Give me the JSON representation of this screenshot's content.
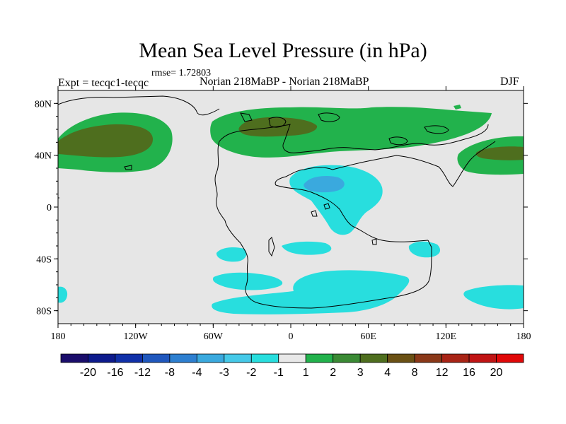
{
  "header": {
    "title": "Mean Sea Level Pressure (in hPa)",
    "rmse": "rmse= 1.72803",
    "expt": "Expt = tecqc1-tecqc",
    "case": "Norian 218MaBP - Norian 218MaBP",
    "season": "DJF"
  },
  "map": {
    "lat_ticks": [
      {
        "value": 80,
        "label": "80N"
      },
      {
        "value": 40,
        "label": "40N"
      },
      {
        "value": 0,
        "label": "0"
      },
      {
        "value": -40,
        "label": "40S"
      },
      {
        "value": -80,
        "label": "80S"
      }
    ],
    "lon_ticks": [
      {
        "value": -180,
        "label": "180"
      },
      {
        "value": -120,
        "label": "120W"
      },
      {
        "value": -60,
        "label": "60W"
      },
      {
        "value": 0,
        "label": "0"
      },
      {
        "value": 60,
        "label": "60E"
      },
      {
        "value": 120,
        "label": "120E"
      },
      {
        "value": 180,
        "label": "180"
      }
    ],
    "background_color": "#e6e6e6"
  },
  "colorbar": {
    "labels": [
      "-20",
      "-16",
      "-12",
      "-8",
      "-4",
      "-3",
      "-2",
      "-1",
      "1",
      "2",
      "3",
      "4",
      "8",
      "12",
      "16",
      "20"
    ],
    "colors": [
      "#1a0d6b",
      "#0d1a8c",
      "#1030a8",
      "#1f57bd",
      "#2d7fd0",
      "#3aa9de",
      "#45c9e8",
      "#28dede",
      "#e8e8e8",
      "#22b24c",
      "#3a8a34",
      "#4e6e1e",
      "#6a5014",
      "#8a3818",
      "#a82416",
      "#c01414",
      "#e00808"
    ]
  }
}
